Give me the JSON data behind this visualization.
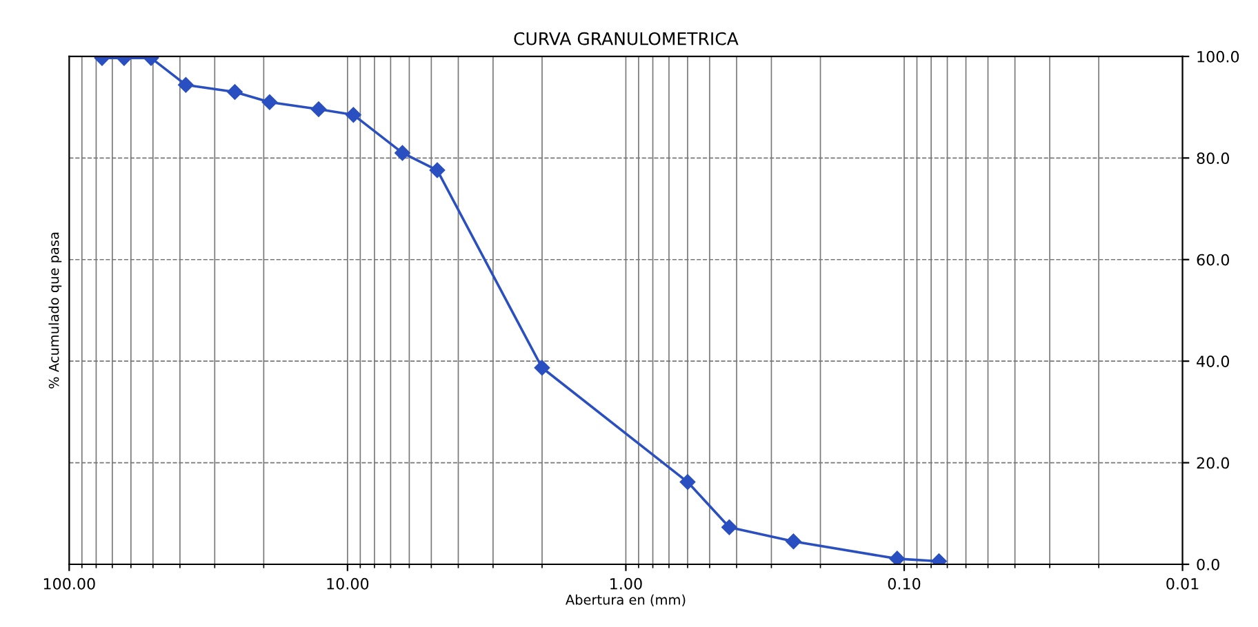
{
  "chart_data": {
    "type": "line",
    "title": "CURVA GRANULOMETRICA",
    "xlabel": "Abertura en (mm)",
    "ylabel": "% Acumulado que pasa",
    "x": [
      76.2,
      63.5,
      50.8,
      38.1,
      25.4,
      19.05,
      12.7,
      9.525,
      6.35,
      4.76,
      2.0,
      0.6,
      0.425,
      0.25,
      0.106,
      0.075
    ],
    "series": [
      {
        "color": "#2a4fc0",
        "values": [
          99.7,
          99.7,
          99.7,
          94.4,
          93,
          91,
          89.6,
          88.5,
          81,
          77.6,
          38.7,
          16.2,
          7.3,
          4.5,
          1.1,
          0.6
        ]
      }
    ],
    "log": "x",
    "xlim": [
      100,
      0.01
    ],
    "xticks": [
      {
        "value": 100,
        "label": "100.00"
      },
      {
        "value": 10,
        "label": "10.00"
      },
      {
        "value": 1,
        "label": "1.00"
      },
      {
        "value": 0.1,
        "label": "0.10"
      },
      {
        "value": 0.01,
        "label": "0.01"
      }
    ],
    "ylim": [
      0,
      100
    ],
    "yticks": [
      {
        "value": 0,
        "label": "0.0"
      },
      {
        "value": 20,
        "label": "20.0"
      },
      {
        "value": 40,
        "label": "40.0"
      },
      {
        "value": 60,
        "label": "60.0"
      },
      {
        "value": 80,
        "label": "80.0"
      },
      {
        "value": 100,
        "label": "100.0"
      }
    ],
    "grid": true,
    "marker": "diamond",
    "line_style": "solid",
    "legend": false
  }
}
